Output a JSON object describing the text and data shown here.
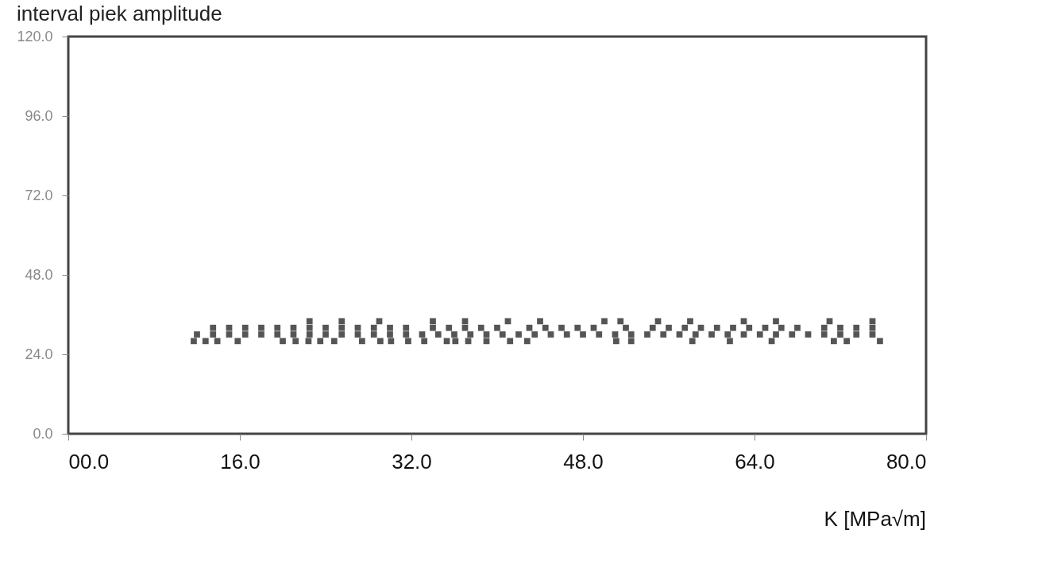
{
  "chart_data": {
    "type": "scatter",
    "title": "interval piek amplitude",
    "xlabel": "K [MPa√m]",
    "xlim": [
      0,
      80
    ],
    "ylim": [
      0,
      120
    ],
    "xticks": [
      {
        "value": 0,
        "label": "00.0"
      },
      {
        "value": 16,
        "label": "16.0"
      },
      {
        "value": 32,
        "label": "32.0"
      },
      {
        "value": 48,
        "label": "48.0"
      },
      {
        "value": 64,
        "label": "64.0"
      },
      {
        "value": 80,
        "label": "80.0"
      }
    ],
    "yticks": [
      {
        "value": 0,
        "label": "0.0"
      },
      {
        "value": 24,
        "label": "24.0"
      },
      {
        "value": 48,
        "label": "48.0"
      },
      {
        "value": 72,
        "label": "72.0"
      },
      {
        "value": 96,
        "label": "96.0"
      },
      {
        "value": 120,
        "label": "120.0"
      }
    ],
    "marker": "square",
    "grid": false,
    "series": [
      {
        "color": "#555555",
        "x": [
          12,
          13.5,
          15,
          16.5,
          18,
          19.5,
          21,
          22.5,
          24,
          25.5,
          27,
          28.5,
          30,
          31.5,
          33,
          34.5,
          36,
          37.5,
          39,
          40.5,
          42,
          43.5,
          45,
          46.5,
          48,
          49.5,
          51,
          52.5,
          54,
          55.5,
          57,
          58.5,
          60,
          61.5,
          63,
          64.5,
          66,
          67.5,
          69,
          70.5,
          72,
          73.5,
          75
        ],
        "values": [
          30,
          30,
          30,
          30,
          30,
          30,
          30,
          30,
          30,
          30,
          30,
          30,
          30,
          30,
          30,
          30,
          30,
          30,
          30,
          30,
          30,
          30,
          30,
          30,
          30,
          30,
          30,
          30,
          30,
          30,
          30,
          30,
          30,
          30,
          30,
          30,
          30,
          30,
          30,
          30,
          30,
          30,
          30
        ]
      },
      {
        "color": "#555555",
        "x": [
          13.5,
          15,
          16.5,
          18,
          19.5,
          21,
          22.5,
          24,
          25.5,
          27,
          28.5,
          30,
          31.5,
          34,
          35.5,
          37,
          38.5,
          40,
          43,
          44.5,
          46,
          47.5,
          49,
          52,
          54.5,
          56,
          57.5,
          59,
          60.5,
          62,
          63.5,
          65,
          66.5,
          68,
          70.5,
          72,
          73.5,
          75
        ],
        "values": [
          32,
          32,
          32,
          32,
          32,
          32,
          32,
          32,
          32,
          32,
          32,
          32,
          32,
          32,
          32,
          32,
          32,
          32,
          32,
          32,
          32,
          32,
          32,
          32,
          32,
          32,
          32,
          32,
          32,
          32,
          32,
          32,
          32,
          32,
          32,
          32,
          32,
          32
        ]
      },
      {
        "color": "#555555",
        "x": [
          22.5,
          25.5,
          29,
          34,
          37,
          41,
          44,
          50,
          51.5,
          55,
          58,
          63,
          66,
          71,
          75
        ],
        "values": [
          34,
          34,
          34,
          34,
          34,
          34,
          34,
          34,
          34,
          34,
          34,
          34,
          34,
          34,
          34
        ]
      },
      {
        "color": "#555555",
        "x": [
          11.7,
          12.8,
          13.9,
          15.8,
          20,
          21.2,
          22.4,
          23.5,
          24.8,
          27.4,
          29.1,
          30.1,
          31.7,
          33.2,
          35.3,
          36.1,
          37.3,
          39,
          41.2,
          42.8,
          51.1,
          52.5,
          58.2,
          61.7,
          65.6,
          71.4,
          72.6,
          75.7
        ],
        "values": [
          28,
          28,
          28,
          28,
          28,
          28,
          28,
          28,
          28,
          28,
          28,
          28,
          28,
          28,
          28,
          28,
          28,
          28,
          28,
          28,
          28,
          28,
          28,
          28,
          28,
          28,
          28,
          28
        ]
      }
    ]
  }
}
